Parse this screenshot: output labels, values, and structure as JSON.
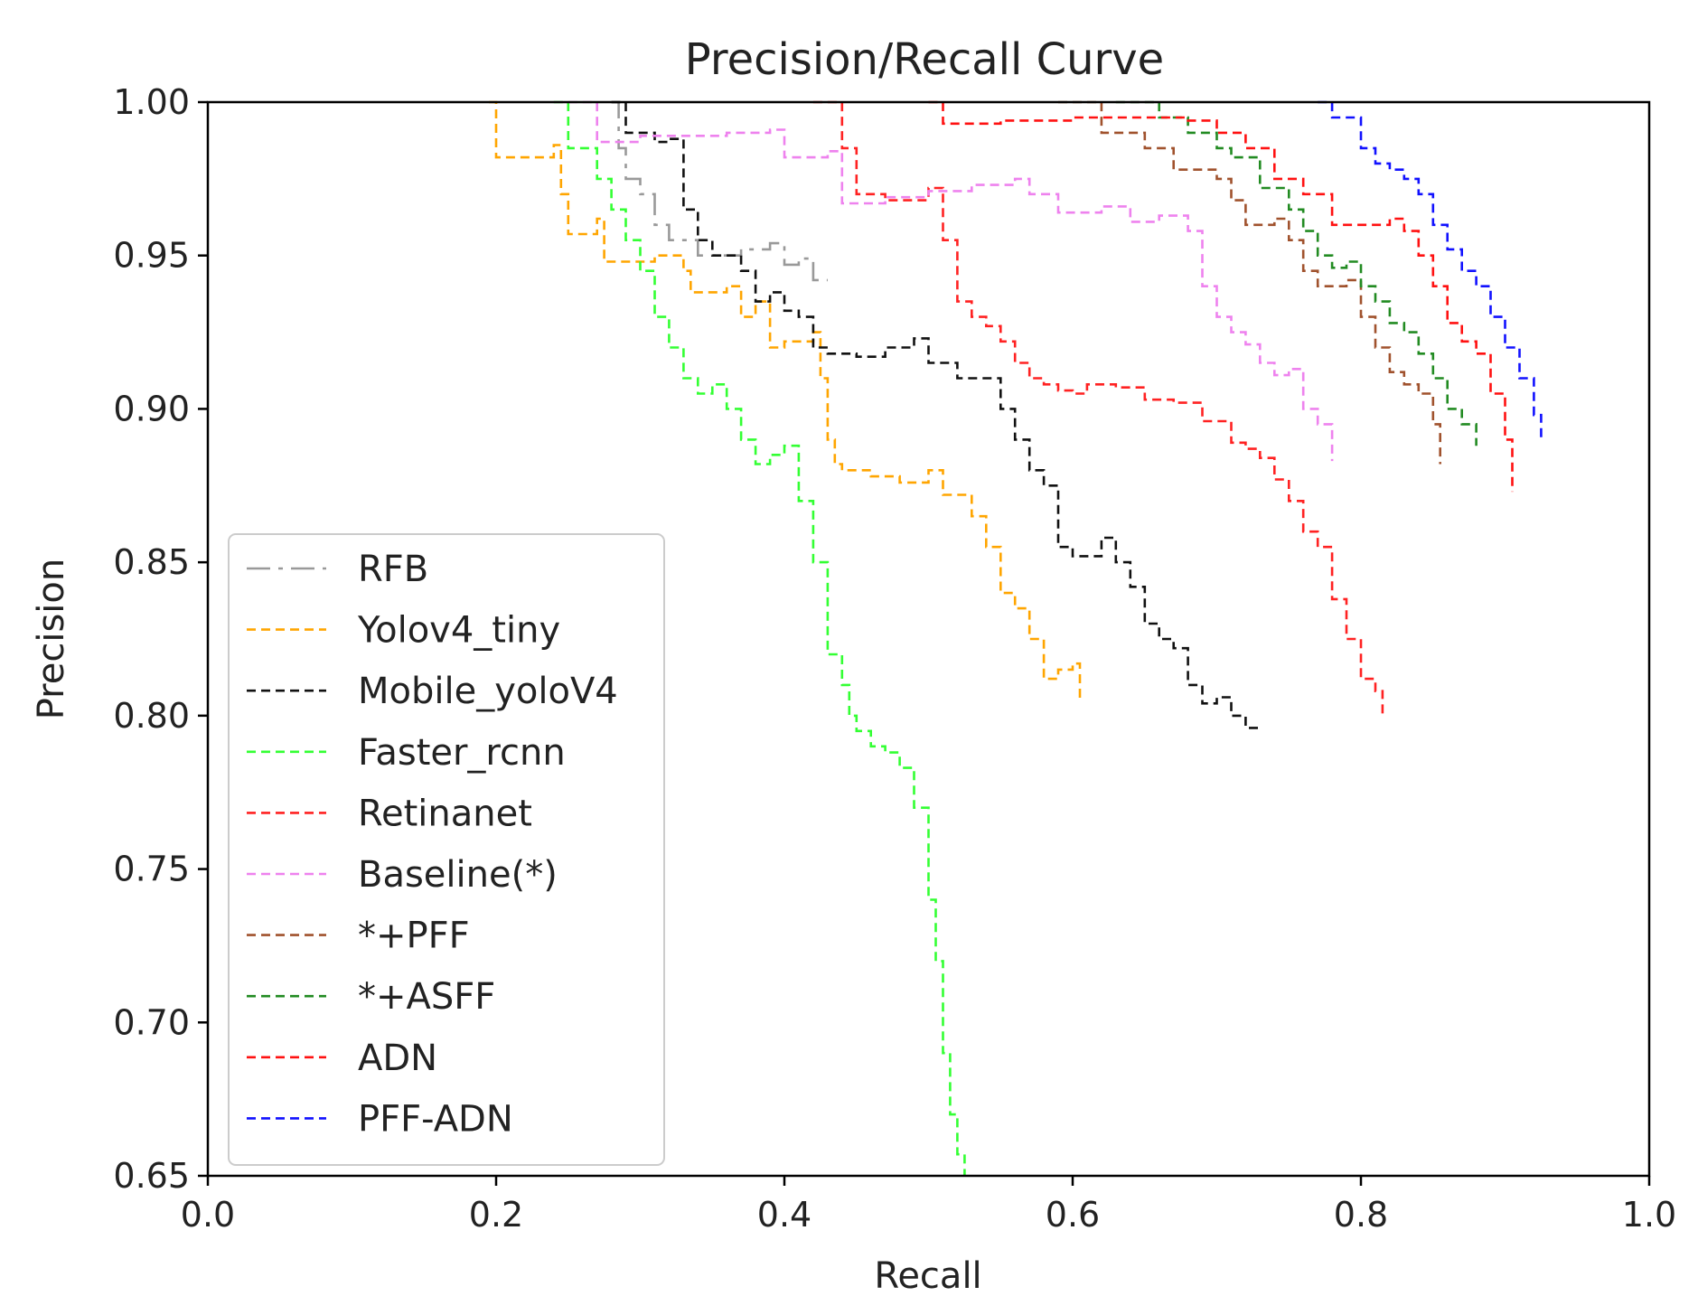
{
  "chart_data": {
    "type": "line",
    "title": "Precision/Recall Curve",
    "xlabel": "Recall",
    "ylabel": "Precision",
    "xlim": [
      0.0,
      1.0
    ],
    "ylim": [
      0.65,
      1.0
    ],
    "xticks": [
      "0.0",
      "0.2",
      "0.4",
      "0.6",
      "0.8",
      "1.0"
    ],
    "yticks": [
      "0.65",
      "0.70",
      "0.75",
      "0.80",
      "0.85",
      "0.90",
      "0.95",
      "1.00"
    ],
    "grid": false,
    "legend_placement": "lower-left",
    "series": [
      {
        "name": "RFB",
        "color": "#999999",
        "dash": "dashdot",
        "x": [
          0.28,
          0.285,
          0.29,
          0.3,
          0.31,
          0.32,
          0.33,
          0.34,
          0.35,
          0.37,
          0.39,
          0.4,
          0.41,
          0.42,
          0.43
        ],
        "y": [
          1.0,
          0.985,
          0.975,
          0.97,
          0.96,
          0.955,
          0.955,
          0.95,
          0.95,
          0.952,
          0.954,
          0.947,
          0.949,
          0.942,
          0.942
        ]
      },
      {
        "name": "Yolov4_tiny",
        "color": "#ffa500",
        "dash": "dashed",
        "x": [
          0.195,
          0.2,
          0.24,
          0.245,
          0.25,
          0.27,
          0.275,
          0.31,
          0.33,
          0.335,
          0.36,
          0.37,
          0.38,
          0.39,
          0.4,
          0.42,
          0.425,
          0.43,
          0.435,
          0.44,
          0.46,
          0.48,
          0.5,
          0.51,
          0.53,
          0.54,
          0.55,
          0.56,
          0.57,
          0.58,
          0.59,
          0.6,
          0.605
        ],
        "y": [
          1.0,
          0.982,
          0.986,
          0.97,
          0.957,
          0.962,
          0.948,
          0.95,
          0.945,
          0.938,
          0.94,
          0.93,
          0.935,
          0.92,
          0.922,
          0.925,
          0.91,
          0.89,
          0.882,
          0.88,
          0.878,
          0.876,
          0.88,
          0.872,
          0.865,
          0.855,
          0.84,
          0.835,
          0.825,
          0.812,
          0.815,
          0.817,
          0.805
        ]
      },
      {
        "name": "Mobile_yoloV4",
        "color": "#111111",
        "dash": "dashed",
        "x": [
          0.28,
          0.29,
          0.31,
          0.32,
          0.33,
          0.34,
          0.35,
          0.37,
          0.38,
          0.39,
          0.4,
          0.41,
          0.42,
          0.43,
          0.45,
          0.47,
          0.49,
          0.5,
          0.52,
          0.55,
          0.56,
          0.57,
          0.58,
          0.59,
          0.6,
          0.62,
          0.63,
          0.64,
          0.65,
          0.66,
          0.67,
          0.68,
          0.69,
          0.7,
          0.71,
          0.72,
          0.73
        ],
        "y": [
          1.0,
          0.99,
          0.987,
          0.988,
          0.965,
          0.955,
          0.95,
          0.945,
          0.935,
          0.938,
          0.932,
          0.93,
          0.92,
          0.918,
          0.917,
          0.92,
          0.923,
          0.915,
          0.91,
          0.9,
          0.89,
          0.88,
          0.875,
          0.855,
          0.852,
          0.858,
          0.85,
          0.842,
          0.83,
          0.825,
          0.822,
          0.81,
          0.804,
          0.806,
          0.8,
          0.796,
          0.795
        ]
      },
      {
        "name": "Faster_rcnn",
        "color": "#33ff33",
        "dash": "dashed",
        "x": [
          0.24,
          0.25,
          0.27,
          0.28,
          0.29,
          0.3,
          0.31,
          0.32,
          0.33,
          0.34,
          0.35,
          0.36,
          0.37,
          0.38,
          0.39,
          0.4,
          0.41,
          0.42,
          0.43,
          0.44,
          0.445,
          0.45,
          0.46,
          0.47,
          0.48,
          0.49,
          0.5,
          0.505,
          0.51,
          0.515,
          0.52,
          0.525
        ],
        "y": [
          1.0,
          0.985,
          0.975,
          0.965,
          0.955,
          0.945,
          0.93,
          0.92,
          0.91,
          0.905,
          0.908,
          0.9,
          0.89,
          0.882,
          0.885,
          0.888,
          0.87,
          0.85,
          0.82,
          0.81,
          0.8,
          0.795,
          0.79,
          0.788,
          0.783,
          0.77,
          0.74,
          0.72,
          0.69,
          0.67,
          0.657,
          0.65
        ]
      },
      {
        "name": "Retinanet",
        "color": "#ff2222",
        "dash": "dashed",
        "x": [
          0.42,
          0.44,
          0.45,
          0.47,
          0.5,
          0.51,
          0.52,
          0.53,
          0.54,
          0.55,
          0.56,
          0.57,
          0.58,
          0.59,
          0.6,
          0.61,
          0.63,
          0.65,
          0.67,
          0.69,
          0.71,
          0.72,
          0.73,
          0.74,
          0.75,
          0.76,
          0.77,
          0.78,
          0.79,
          0.8,
          0.81,
          0.815
        ],
        "y": [
          1.0,
          0.985,
          0.97,
          0.968,
          0.972,
          0.955,
          0.935,
          0.93,
          0.927,
          0.922,
          0.915,
          0.91,
          0.908,
          0.906,
          0.905,
          0.908,
          0.907,
          0.903,
          0.902,
          0.896,
          0.889,
          0.887,
          0.884,
          0.877,
          0.87,
          0.86,
          0.855,
          0.838,
          0.825,
          0.812,
          0.808,
          0.8
        ]
      },
      {
        "name": "Baseline(*)",
        "color": "#ee82ee",
        "dash": "dashed",
        "x": [
          0.25,
          0.27,
          0.3,
          0.33,
          0.36,
          0.39,
          0.4,
          0.43,
          0.44,
          0.47,
          0.5,
          0.53,
          0.56,
          0.57,
          0.59,
          0.62,
          0.64,
          0.66,
          0.68,
          0.69,
          0.7,
          0.71,
          0.72,
          0.73,
          0.74,
          0.75,
          0.76,
          0.77,
          0.78
        ],
        "y": [
          1.0,
          0.987,
          0.989,
          0.989,
          0.99,
          0.991,
          0.982,
          0.984,
          0.967,
          0.969,
          0.971,
          0.973,
          0.975,
          0.97,
          0.964,
          0.966,
          0.961,
          0.963,
          0.958,
          0.94,
          0.93,
          0.925,
          0.921,
          0.915,
          0.911,
          0.913,
          0.9,
          0.895,
          0.883
        ]
      },
      {
        "name": "*+PFF",
        "color": "#a0522d",
        "dash": "dashed",
        "x": [
          0.59,
          0.62,
          0.65,
          0.67,
          0.7,
          0.71,
          0.72,
          0.74,
          0.75,
          0.76,
          0.77,
          0.78,
          0.79,
          0.8,
          0.81,
          0.82,
          0.83,
          0.84,
          0.85,
          0.855
        ],
        "y": [
          1.0,
          0.99,
          0.985,
          0.978,
          0.975,
          0.968,
          0.96,
          0.962,
          0.955,
          0.945,
          0.94,
          0.94,
          0.942,
          0.93,
          0.92,
          0.912,
          0.908,
          0.905,
          0.895,
          0.882
        ]
      },
      {
        "name": "*+ASFF",
        "color": "#228b22",
        "dash": "dashed",
        "x": [
          0.63,
          0.66,
          0.68,
          0.7,
          0.71,
          0.73,
          0.75,
          0.76,
          0.77,
          0.78,
          0.79,
          0.8,
          0.81,
          0.82,
          0.83,
          0.84,
          0.85,
          0.86,
          0.87,
          0.88
        ],
        "y": [
          1.0,
          0.995,
          0.99,
          0.985,
          0.982,
          0.972,
          0.965,
          0.958,
          0.95,
          0.946,
          0.948,
          0.94,
          0.935,
          0.928,
          0.925,
          0.918,
          0.91,
          0.9,
          0.895,
          0.888
        ]
      },
      {
        "name": "ADN",
        "color": "#ff1111",
        "dash": "dashed",
        "x": [
          0.5,
          0.51,
          0.55,
          0.6,
          0.65,
          0.68,
          0.7,
          0.72,
          0.74,
          0.76,
          0.78,
          0.8,
          0.82,
          0.83,
          0.84,
          0.85,
          0.86,
          0.87,
          0.88,
          0.89,
          0.9,
          0.905
        ],
        "y": [
          1.0,
          0.993,
          0.994,
          0.995,
          0.995,
          0.994,
          0.99,
          0.985,
          0.975,
          0.97,
          0.96,
          0.96,
          0.962,
          0.958,
          0.95,
          0.94,
          0.928,
          0.922,
          0.918,
          0.905,
          0.89,
          0.873
        ]
      },
      {
        "name": "PFF-ADN",
        "color": "#1111ff",
        "dash": "dashed",
        "x": [
          0.77,
          0.78,
          0.8,
          0.81,
          0.82,
          0.83,
          0.84,
          0.85,
          0.86,
          0.87,
          0.88,
          0.89,
          0.9,
          0.91,
          0.92,
          0.925
        ],
        "y": [
          1.0,
          0.995,
          0.985,
          0.98,
          0.978,
          0.975,
          0.97,
          0.96,
          0.952,
          0.945,
          0.94,
          0.93,
          0.92,
          0.91,
          0.898,
          0.89
        ]
      }
    ]
  }
}
